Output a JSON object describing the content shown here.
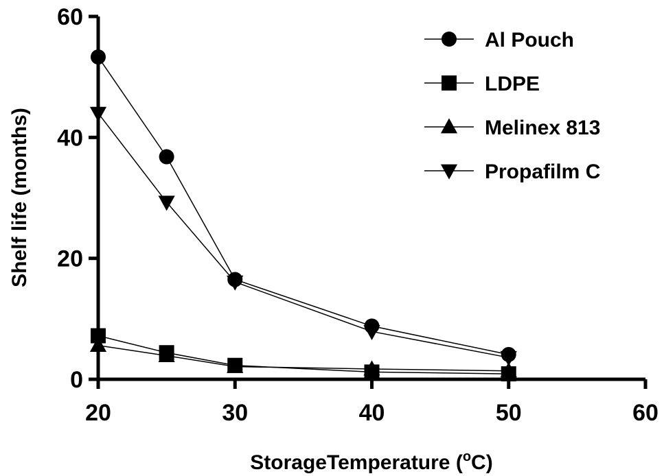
{
  "chart_data": {
    "type": "line",
    "title": "",
    "xlabel": "StorageTemperature (",
    "xlabel_unit_super": "o",
    "xlabel_unit_tail": "C)",
    "ylabel": "Shelf life (months)",
    "xlim": [
      20,
      60
    ],
    "ylim": [
      0,
      60
    ],
    "xticks": [
      "20",
      "30",
      "40",
      "50",
      "60"
    ],
    "yticks": [
      "0",
      "20",
      "40",
      "60"
    ],
    "legend_position": "top-right",
    "grid": false,
    "line_color": "#000000",
    "x": [
      20,
      25,
      30,
      40,
      50
    ],
    "series": [
      {
        "name": "Al Pouch",
        "marker": "circle",
        "values": [
          53.3,
          36.8,
          16.5,
          8.8,
          4.1
        ]
      },
      {
        "name": "LDPE",
        "marker": "square",
        "values": [
          7.2,
          4.4,
          2.3,
          1.2,
          0.9
        ]
      },
      {
        "name": "Melinex 813",
        "marker": "triangle-up",
        "values": [
          5.6,
          3.9,
          2.1,
          1.7,
          1.4
        ]
      },
      {
        "name": "Propafilm C",
        "marker": "triangle-down",
        "values": [
          44.0,
          29.3,
          16.1,
          7.9,
          3.6
        ]
      }
    ]
  }
}
